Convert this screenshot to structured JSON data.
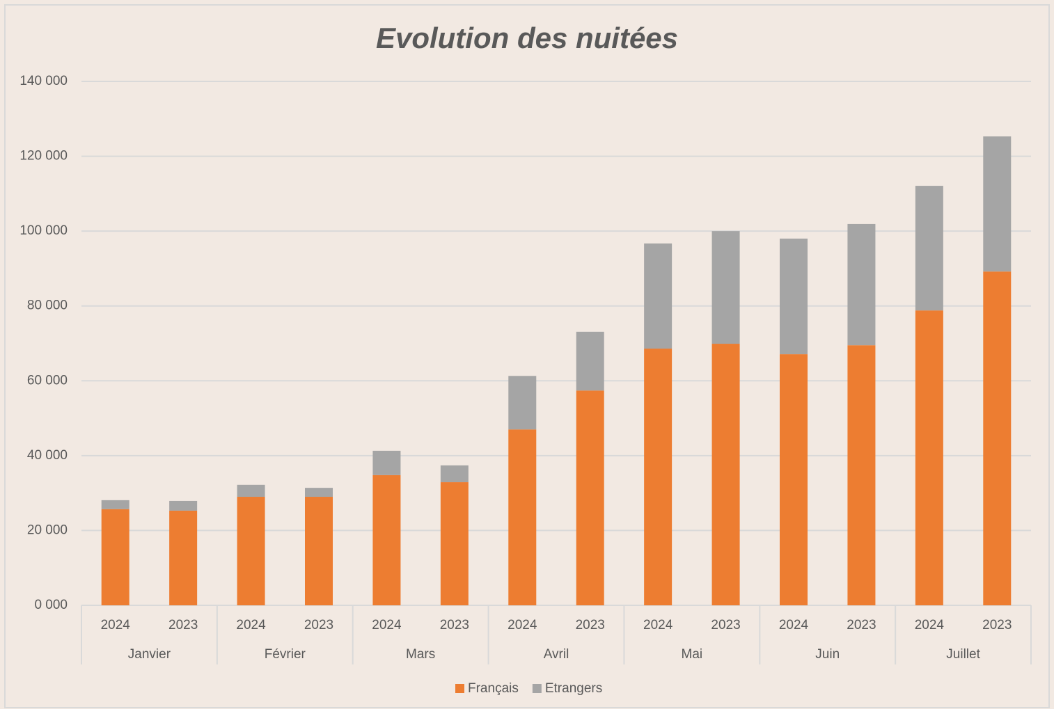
{
  "chart_data": {
    "type": "stacked_bar",
    "title": "Evolution des nuitées",
    "categories": [
      "2024",
      "2023",
      "2024",
      "2023",
      "2024",
      "2023",
      "2024",
      "2023",
      "2024",
      "2023",
      "2024",
      "2023",
      "2024",
      "2023"
    ],
    "groups": [
      "Janvier",
      "Février",
      "Mars",
      "Avril",
      "Mai",
      "Juin",
      "Juillet"
    ],
    "series": [
      {
        "name": "Français",
        "color": "#ed7d31",
        "values": [
          25700,
          25300,
          29000,
          29000,
          34800,
          32900,
          47000,
          57400,
          68600,
          69900,
          67100,
          69500,
          78800,
          89200
        ]
      },
      {
        "name": "Etrangers",
        "color": "#a5a5a5",
        "values": [
          2400,
          2600,
          3200,
          2400,
          6500,
          4500,
          14300,
          15700,
          28100,
          30100,
          30900,
          32400,
          33300,
          36100
        ]
      }
    ],
    "ylim": [
      0,
      140000
    ],
    "yticks": [
      {
        "value": 0,
        "label": "0 000"
      },
      {
        "value": 20000,
        "label": "20 000"
      },
      {
        "value": 40000,
        "label": "40 000"
      },
      {
        "value": 60000,
        "label": "60 000"
      },
      {
        "value": 80000,
        "label": "80 000"
      },
      {
        "value": 100000,
        "label": "100 000"
      },
      {
        "value": 120000,
        "label": "120 000"
      },
      {
        "value": 140000,
        "label": "140 000"
      }
    ],
    "grid": true,
    "legend": "bottom"
  }
}
